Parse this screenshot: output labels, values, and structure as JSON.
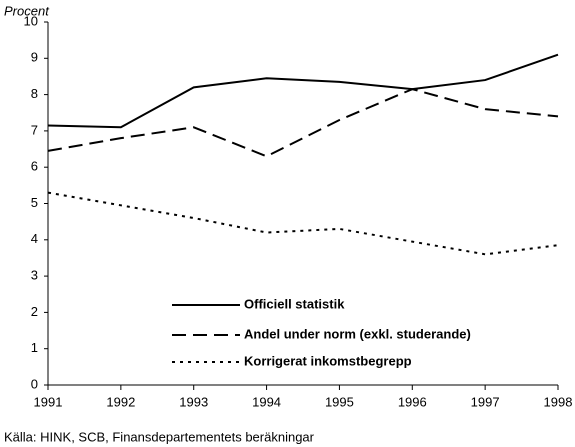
{
  "chart_data": {
    "type": "line",
    "y_label": "Procent",
    "source": "Källa: HINK, SCB, Finansdepartementets beräkningar",
    "x": [
      1991,
      1992,
      1993,
      1994,
      1995,
      1996,
      1997,
      1998
    ],
    "xlim": [
      1991,
      1998
    ],
    "xticks": [
      1991,
      1992,
      1993,
      1994,
      1995,
      1996,
      1997,
      1998
    ],
    "ylim": [
      0,
      10
    ],
    "yticks": [
      0,
      1,
      2,
      3,
      4,
      5,
      6,
      7,
      8,
      9,
      10
    ],
    "grid": false,
    "series": [
      {
        "name": "Officiell statistik",
        "color": "#000000",
        "style": "solid",
        "values": [
          7.15,
          7.1,
          8.2,
          8.45,
          8.35,
          8.15,
          8.4,
          9.1
        ]
      },
      {
        "name": "Andel under norm (exkl. studerande)",
        "color": "#000000",
        "style": "dashed",
        "values": [
          6.45,
          6.8,
          7.1,
          6.3,
          7.3,
          8.15,
          7.6,
          7.4
        ]
      },
      {
        "name": "Korrigerat inkomstbegrepp",
        "color": "#000000",
        "style": "dotted",
        "values": [
          5.3,
          4.95,
          4.6,
          4.2,
          4.3,
          3.95,
          3.6,
          3.85
        ]
      }
    ]
  }
}
